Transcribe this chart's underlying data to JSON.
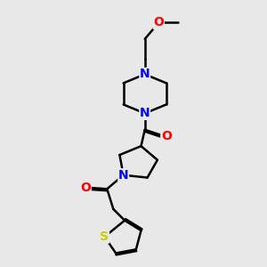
{
  "background_color": "#e8e8e8",
  "atom_colors": {
    "N": "#0000ff",
    "O": "#ff0000",
    "S": "#cccc00"
  },
  "bond_color": "#000000",
  "bond_width": 1.8,
  "font_size": 10
}
